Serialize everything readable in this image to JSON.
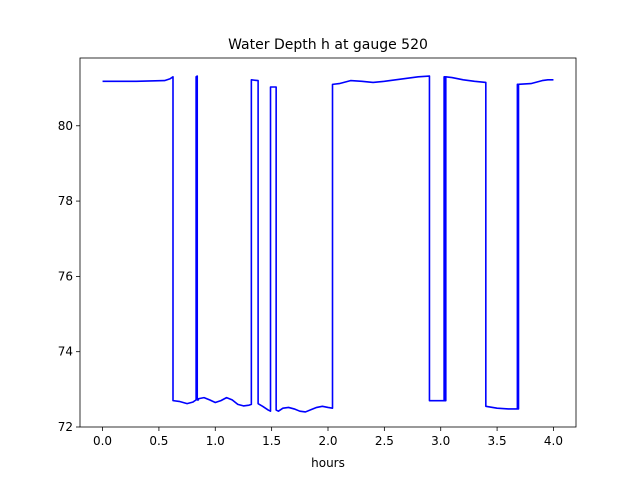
{
  "chart_data": {
    "type": "line",
    "title": "Water Depth h at gauge 520",
    "xlabel": "hours",
    "ylabel": "",
    "xlim": [
      -0.2,
      4.2
    ],
    "ylim": [
      72.0,
      81.8
    ],
    "xticks": [
      0.0,
      0.5,
      1.0,
      1.5,
      2.0,
      2.5,
      3.0,
      3.5,
      4.0
    ],
    "xtick_labels": [
      "0.0",
      "0.5",
      "1.0",
      "1.5",
      "2.0",
      "2.5",
      "3.0",
      "3.5",
      "4.0"
    ],
    "yticks": [
      72,
      74,
      76,
      78,
      80
    ],
    "ytick_labels": [
      "72",
      "74",
      "76",
      "78",
      "80"
    ],
    "grid": false,
    "series": [
      {
        "color": "#0000ff",
        "x": [
          0.0,
          0.3,
          0.55,
          0.6,
          0.625,
          0.625,
          0.68,
          0.75,
          0.8,
          0.83,
          0.83,
          0.84,
          0.84,
          0.85,
          0.85,
          0.9,
          0.95,
          1.0,
          1.05,
          1.1,
          1.15,
          1.2,
          1.25,
          1.3,
          1.32,
          1.32,
          1.38,
          1.38,
          1.42,
          1.47,
          1.49,
          1.49,
          1.54,
          1.54,
          1.56,
          1.6,
          1.65,
          1.7,
          1.75,
          1.8,
          1.85,
          1.9,
          1.95,
          2.0,
          2.04,
          2.04,
          2.1,
          2.2,
          2.3,
          2.4,
          2.5,
          2.6,
          2.7,
          2.8,
          2.9,
          2.9,
          3.03,
          3.03,
          3.04,
          3.04,
          3.045,
          3.045,
          3.1,
          3.2,
          3.3,
          3.4,
          3.4,
          3.5,
          3.6,
          3.68,
          3.68,
          3.685,
          3.685,
          3.69,
          3.69,
          3.8,
          3.9,
          3.95,
          4.0
        ],
        "y": [
          81.18,
          81.18,
          81.2,
          81.25,
          81.3,
          72.7,
          72.68,
          72.62,
          72.66,
          72.72,
          81.3,
          81.32,
          72.72,
          72.72,
          72.75,
          72.78,
          72.72,
          72.65,
          72.7,
          72.78,
          72.72,
          72.6,
          72.56,
          72.58,
          72.6,
          81.22,
          81.2,
          72.62,
          72.55,
          72.45,
          72.42,
          81.03,
          81.03,
          72.45,
          72.42,
          72.5,
          72.52,
          72.48,
          72.42,
          72.4,
          72.46,
          72.52,
          72.55,
          72.52,
          72.5,
          81.1,
          81.12,
          81.2,
          81.18,
          81.15,
          81.18,
          81.22,
          81.26,
          81.3,
          81.32,
          72.7,
          72.7,
          81.3,
          81.3,
          72.7,
          72.7,
          81.3,
          81.28,
          81.22,
          81.18,
          81.15,
          72.55,
          72.5,
          72.48,
          72.48,
          81.1,
          81.1,
          72.48,
          72.48,
          81.1,
          81.12,
          81.2,
          81.22,
          81.22
        ]
      }
    ]
  }
}
